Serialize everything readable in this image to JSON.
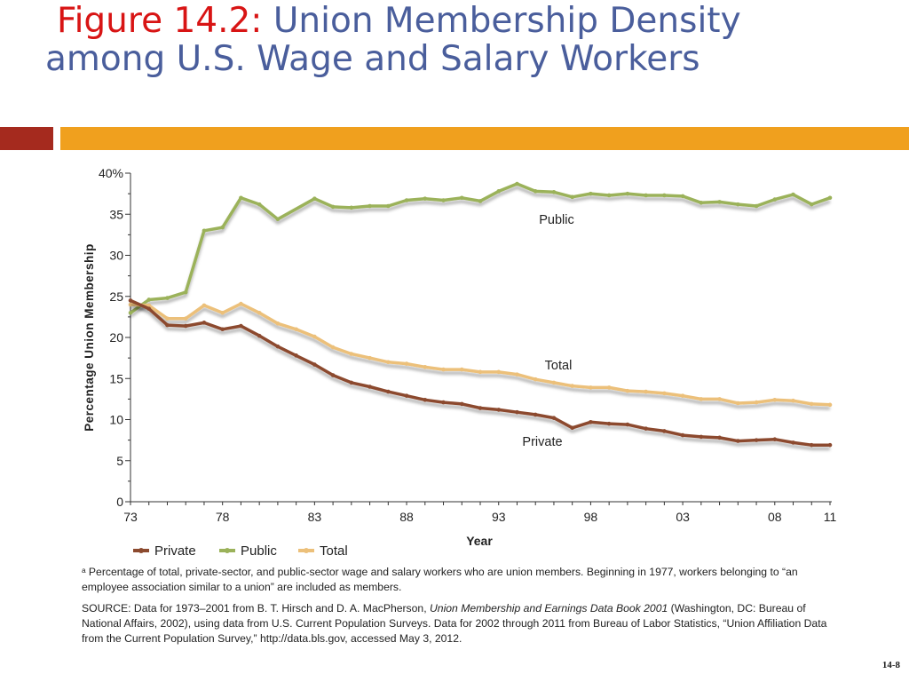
{
  "slide": {
    "figure_label": "Figure 14.2:",
    "title_rest_line1": "Union Membership Density",
    "title_line2": "among U.S. Wage and Salary Workers",
    "page_number": "14-8"
  },
  "colors": {
    "title_blue": "#4a5e9c",
    "figure_red": "#d81414",
    "band_red": "#a52a1e",
    "band_orange": "#f0a01e",
    "private": "#8c4a2f",
    "public": "#9bb25a",
    "total": "#ecc07a"
  },
  "chart_data": {
    "type": "line",
    "ylabel": "Percentage Union Membership",
    "xlabel": "Year",
    "ylim": [
      0,
      40
    ],
    "yticks": [
      0,
      5,
      10,
      15,
      20,
      25,
      30,
      35,
      40
    ],
    "ytick_labels": [
      "0",
      "5",
      "10",
      "15",
      "20",
      "25",
      "30",
      "35",
      "40%"
    ],
    "xlim": [
      1973,
      2011
    ],
    "xticks": [
      1973,
      1978,
      1983,
      1988,
      1993,
      1998,
      2003,
      2008,
      2011
    ],
    "xtick_labels": [
      "73",
      "78",
      "83",
      "88",
      "93",
      "98",
      "03",
      "08",
      "11"
    ],
    "legend": "bottom-left",
    "grid": false,
    "x": [
      1973,
      1974,
      1975,
      1976,
      1977,
      1978,
      1979,
      1980,
      1981,
      1982,
      1983,
      1984,
      1985,
      1986,
      1987,
      1988,
      1989,
      1990,
      1991,
      1992,
      1993,
      1994,
      1995,
      1996,
      1997,
      1998,
      1999,
      2000,
      2001,
      2002,
      2003,
      2004,
      2005,
      2006,
      2007,
      2008,
      2009,
      2010,
      2011
    ],
    "series": [
      {
        "name": "Private",
        "label": "Private",
        "color": "#8c4a2f",
        "values": [
          24.5,
          23.5,
          21.5,
          21.4,
          21.8,
          21.0,
          21.4,
          20.2,
          18.9,
          17.8,
          16.7,
          15.4,
          14.5,
          14.0,
          13.4,
          12.9,
          12.4,
          12.1,
          11.9,
          11.4,
          11.2,
          10.9,
          10.6,
          10.2,
          9.0,
          9.7,
          9.5,
          9.4,
          8.9,
          8.6,
          8.1,
          7.9,
          7.8,
          7.4,
          7.5,
          7.6,
          7.2,
          6.9,
          6.9
        ]
      },
      {
        "name": "Public",
        "label": "Public",
        "color": "#9bb25a",
        "values": [
          23.0,
          24.6,
          24.8,
          25.5,
          33.0,
          33.4,
          37.0,
          36.2,
          34.4,
          null,
          36.9,
          35.9,
          35.8,
          36.0,
          36.0,
          36.7,
          36.9,
          36.7,
          37.0,
          36.6,
          37.8,
          38.7,
          37.8,
          37.7,
          37.1,
          37.5,
          37.3,
          37.5,
          37.3,
          37.3,
          37.2,
          36.4,
          36.5,
          36.2,
          36.0,
          36.8,
          37.4,
          36.2,
          37.0
        ]
      },
      {
        "name": "Total",
        "label": "Total",
        "color": "#ecc07a",
        "values": [
          24.0,
          23.9,
          22.3,
          22.3,
          23.9,
          23.0,
          24.1,
          23.0,
          21.7,
          21.0,
          20.1,
          18.8,
          18.0,
          17.5,
          17.0,
          16.8,
          16.4,
          16.1,
          16.1,
          15.8,
          15.8,
          15.5,
          14.9,
          14.5,
          14.1,
          13.9,
          13.9,
          13.5,
          13.4,
          13.2,
          12.9,
          12.5,
          12.5,
          12.0,
          12.1,
          12.4,
          12.3,
          11.9,
          11.8
        ]
      }
    ]
  },
  "notes": {
    "footnote": "ᵃ Percentage of total, private-sector, and public-sector wage and salary workers who are union members. Beginning in 1977, workers belonging to “an employee association similar to a union” are included as members.",
    "source_prefix": "SOURCE: Data for 1973–2001 from B. T. Hirsch and D. A. MacPherson, ",
    "source_book": "Union Membership and Earnings Data Book 2001",
    "source_mid": " (Washington, DC: Bureau of National Affairs, 2002), using data from U.S. Current Population Surveys. Data for 2002 through 2011 from Bureau of Labor Statistics, “Union Affiliation Data from the Current Population Survey,” http://data.bls.gov, accessed May 3, 2012."
  }
}
